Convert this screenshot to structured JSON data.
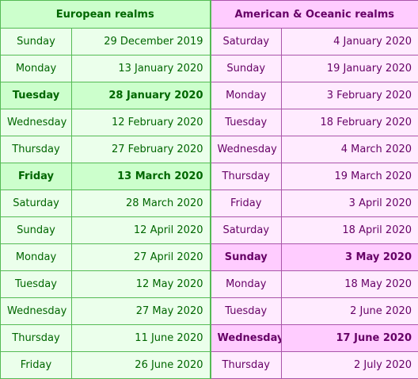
{
  "headers": {
    "european": "European realms",
    "american": "American & Oceanic realms"
  },
  "rows": [
    {
      "eu_day": "Sunday",
      "eu_date": "29 December 2019",
      "eu_hl": false,
      "am_day": "Saturday",
      "am_date": "4 January 2020",
      "am_hl": false
    },
    {
      "eu_day": "Monday",
      "eu_date": "13 January 2020",
      "eu_hl": false,
      "am_day": "Sunday",
      "am_date": "19 January 2020",
      "am_hl": false
    },
    {
      "eu_day": "Tuesday",
      "eu_date": "28 January 2020",
      "eu_hl": true,
      "am_day": "Monday",
      "am_date": "3 February 2020",
      "am_hl": false
    },
    {
      "eu_day": "Wednesday",
      "eu_date": "12 February 2020",
      "eu_hl": false,
      "am_day": "Tuesday",
      "am_date": "18 February 2020",
      "am_hl": false
    },
    {
      "eu_day": "Thursday",
      "eu_date": "27 February 2020",
      "eu_hl": false,
      "am_day": "Wednesday",
      "am_date": "4 March 2020",
      "am_hl": false
    },
    {
      "eu_day": "Friday",
      "eu_date": "13 March 2020",
      "eu_hl": true,
      "am_day": "Thursday",
      "am_date": "19 March 2020",
      "am_hl": false
    },
    {
      "eu_day": "Saturday",
      "eu_date": "28 March 2020",
      "eu_hl": false,
      "am_day": "Friday",
      "am_date": "3 April 2020",
      "am_hl": false
    },
    {
      "eu_day": "Sunday",
      "eu_date": "12 April 2020",
      "eu_hl": false,
      "am_day": "Saturday",
      "am_date": "18 April 2020",
      "am_hl": false
    },
    {
      "eu_day": "Monday",
      "eu_date": "27 April 2020",
      "eu_hl": false,
      "am_day": "Sunday",
      "am_date": "3 May 2020",
      "am_hl": true
    },
    {
      "eu_day": "Tuesday",
      "eu_date": "12 May 2020",
      "eu_hl": false,
      "am_day": "Monday",
      "am_date": "18 May 2020",
      "am_hl": false
    },
    {
      "eu_day": "Wednesday",
      "eu_date": "27 May 2020",
      "eu_hl": false,
      "am_day": "Tuesday",
      "am_date": "2 June 2020",
      "am_hl": false
    },
    {
      "eu_day": "Thursday",
      "eu_date": "11 June 2020",
      "eu_hl": false,
      "am_day": "Wednesday",
      "am_date": "17 June 2020",
      "am_hl": true
    },
    {
      "eu_day": "Friday",
      "eu_date": "26 June 2020",
      "eu_hl": false,
      "am_day": "Thursday",
      "am_date": "2 July 2020",
      "am_hl": false
    }
  ],
  "colors": {
    "european_text": "#006600",
    "european_header_bg": "#ccffcc",
    "european_cell_bg": "#ebffeb",
    "american_text": "#660066",
    "american_header_bg": "#ffccff",
    "american_cell_bg": "#ffebff"
  }
}
